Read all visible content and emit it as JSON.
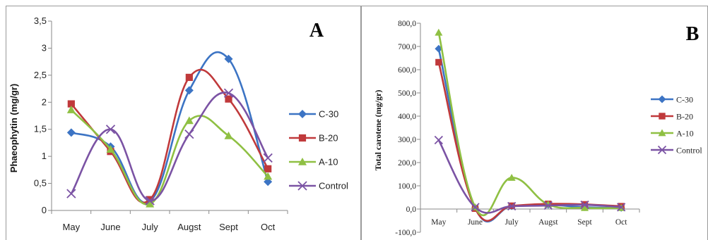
{
  "chart_data": [
    {
      "type": "line",
      "panel_label": "A",
      "ylabel": "Phaeophytin (mg/gr)",
      "xlabel": "",
      "categories": [
        "May",
        "June",
        "July",
        "Augst",
        "Sept",
        "Oct"
      ],
      "ylim": [
        0,
        3.5
      ],
      "yticks": [
        "0",
        "0,5",
        "1",
        "1,5",
        "2",
        "2,5",
        "3",
        "3,5"
      ],
      "grid": false,
      "legend": "right",
      "smooth": true,
      "series": [
        {
          "name": "C-30",
          "values": [
            1.44,
            1.18,
            0.17,
            2.22,
            2.8,
            0.53
          ],
          "color": "#3c74c4",
          "marker": "diamond"
        },
        {
          "name": "B-20",
          "values": [
            1.97,
            1.09,
            0.2,
            2.46,
            2.06,
            0.77
          ],
          "color": "#c0393b",
          "marker": "square"
        },
        {
          "name": "A-10",
          "values": [
            1.86,
            1.13,
            0.12,
            1.66,
            1.38,
            0.63
          ],
          "color": "#8fc043",
          "marker": "triangle"
        },
        {
          "name": "Control",
          "values": [
            0.31,
            1.5,
            0.18,
            1.41,
            2.17,
            0.97
          ],
          "color": "#7b53a4",
          "marker": "x"
        }
      ]
    },
    {
      "type": "line",
      "panel_label": "B",
      "ylabel": "Total carotene (mg/gr)",
      "xlabel": "",
      "categories": [
        "May",
        "June",
        "July",
        "Augst",
        "Sept",
        "Oct"
      ],
      "ylim": [
        -100,
        800
      ],
      "yticks": [
        "-100,0",
        "0,0",
        "100,0",
        "200,0",
        "300,0",
        "400,0",
        "500,0",
        "600,0",
        "700,0",
        "800,0"
      ],
      "grid": false,
      "legend": "right",
      "smooth": true,
      "series": [
        {
          "name": "C-30",
          "values": [
            690,
            5,
            12,
            18,
            8,
            5
          ],
          "color": "#3c74c4",
          "marker": "diamond"
        },
        {
          "name": "B-20",
          "values": [
            632,
            2,
            14,
            22,
            20,
            12
          ],
          "color": "#c0393b",
          "marker": "square"
        },
        {
          "name": "A-10",
          "values": [
            760,
            8,
            135,
            20,
            5,
            5
          ],
          "color": "#8fc043",
          "marker": "triangle"
        },
        {
          "name": "Control",
          "values": [
            297,
            8,
            12,
            15,
            18,
            8
          ],
          "color": "#7b53a4",
          "marker": "x"
        }
      ]
    }
  ]
}
